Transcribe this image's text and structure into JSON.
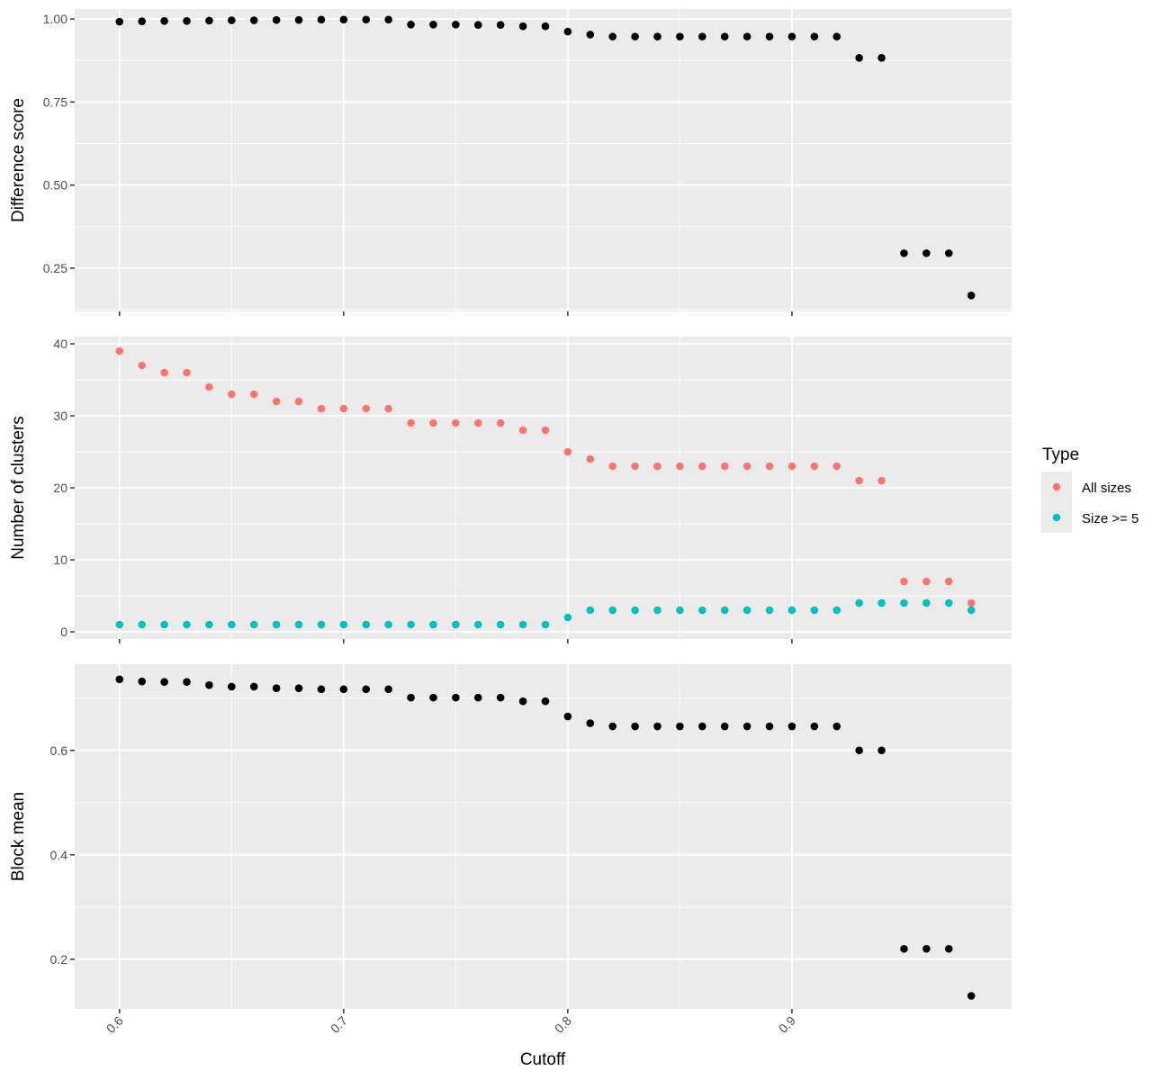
{
  "chart_data": {
    "type": "scatter",
    "x_label": "Cutoff",
    "x_ticks": [
      0.6,
      0.7,
      0.8,
      0.9
    ],
    "x_range": [
      0.58,
      0.998
    ],
    "x": [
      0.6,
      0.61,
      0.62,
      0.63,
      0.64,
      0.65,
      0.66,
      0.67,
      0.68,
      0.69,
      0.7,
      0.71,
      0.72,
      0.73,
      0.74,
      0.75,
      0.76,
      0.77,
      0.78,
      0.79,
      0.8,
      0.81,
      0.82,
      0.83,
      0.84,
      0.85,
      0.86,
      0.87,
      0.88,
      0.89,
      0.9,
      0.91,
      0.92,
      0.93,
      0.94,
      0.95,
      0.96,
      0.97,
      0.98
    ],
    "grid": true,
    "legend": {
      "title": "Type",
      "position": "right",
      "entries": [
        {
          "label": "All sizes",
          "color": "#F8766D"
        },
        {
          "label": "Size >= 5",
          "color": "#00BFC4"
        }
      ]
    },
    "panels": [
      {
        "ylabel": "Difference score",
        "ylim": [
          0.12,
          1.03
        ],
        "y_ticks": [
          0.25,
          0.5,
          0.75,
          1.0
        ],
        "y_tick_labels": [
          "0.25",
          "0.50",
          "0.75",
          "1.00"
        ],
        "series": [
          {
            "color": "#000000",
            "values": [
              0.992,
              0.993,
              0.994,
              0.994,
              0.995,
              0.996,
              0.996,
              0.997,
              0.997,
              0.998,
              0.998,
              0.998,
              0.998,
              0.983,
              0.983,
              0.983,
              0.982,
              0.982,
              0.978,
              0.978,
              0.962,
              0.953,
              0.947,
              0.947,
              0.947,
              0.947,
              0.947,
              0.947,
              0.947,
              0.947,
              0.947,
              0.947,
              0.947,
              0.883,
              0.883,
              0.295,
              0.295,
              0.295,
              0.168
            ]
          }
        ]
      },
      {
        "ylabel": "Number of clusters",
        "ylim": [
          -1,
          41
        ],
        "y_ticks": [
          0,
          10,
          20,
          30,
          40
        ],
        "y_tick_labels": [
          "0",
          "10",
          "20",
          "30",
          "40"
        ],
        "series": [
          {
            "name": "All sizes",
            "color": "#F8766D",
            "values": [
              39,
              37,
              36,
              36,
              34,
              33,
              33,
              32,
              32,
              31,
              31,
              31,
              31,
              29,
              29,
              29,
              29,
              29,
              28,
              28,
              25,
              24,
              23,
              23,
              23,
              23,
              23,
              23,
              23,
              23,
              23,
              23,
              23,
              21,
              21,
              7,
              7,
              7,
              4
            ]
          },
          {
            "name": "Size >= 5",
            "color": "#00BFC4",
            "values": [
              1,
              1,
              1,
              1,
              1,
              1,
              1,
              1,
              1,
              1,
              1,
              1,
              1,
              1,
              1,
              1,
              1,
              1,
              1,
              1,
              2,
              3,
              3,
              3,
              3,
              3,
              3,
              3,
              3,
              3,
              3,
              3,
              3,
              4,
              4,
              4,
              4,
              4,
              3
            ]
          }
        ]
      },
      {
        "ylabel": "Block mean",
        "ylim": [
          0.105,
          0.765
        ],
        "y_ticks": [
          0.2,
          0.4,
          0.6
        ],
        "y_tick_labels": [
          "0.2",
          "0.4",
          "0.6"
        ],
        "series": [
          {
            "color": "#000000",
            "values": [
              0.736,
              0.732,
              0.731,
              0.731,
              0.725,
              0.722,
              0.722,
              0.719,
              0.719,
              0.717,
              0.717,
              0.717,
              0.717,
              0.701,
              0.701,
              0.701,
              0.701,
              0.701,
              0.694,
              0.694,
              0.665,
              0.652,
              0.646,
              0.646,
              0.646,
              0.646,
              0.646,
              0.646,
              0.646,
              0.646,
              0.646,
              0.646,
              0.646,
              0.6,
              0.6,
              0.22,
              0.22,
              0.22,
              0.13
            ]
          }
        ]
      }
    ]
  }
}
